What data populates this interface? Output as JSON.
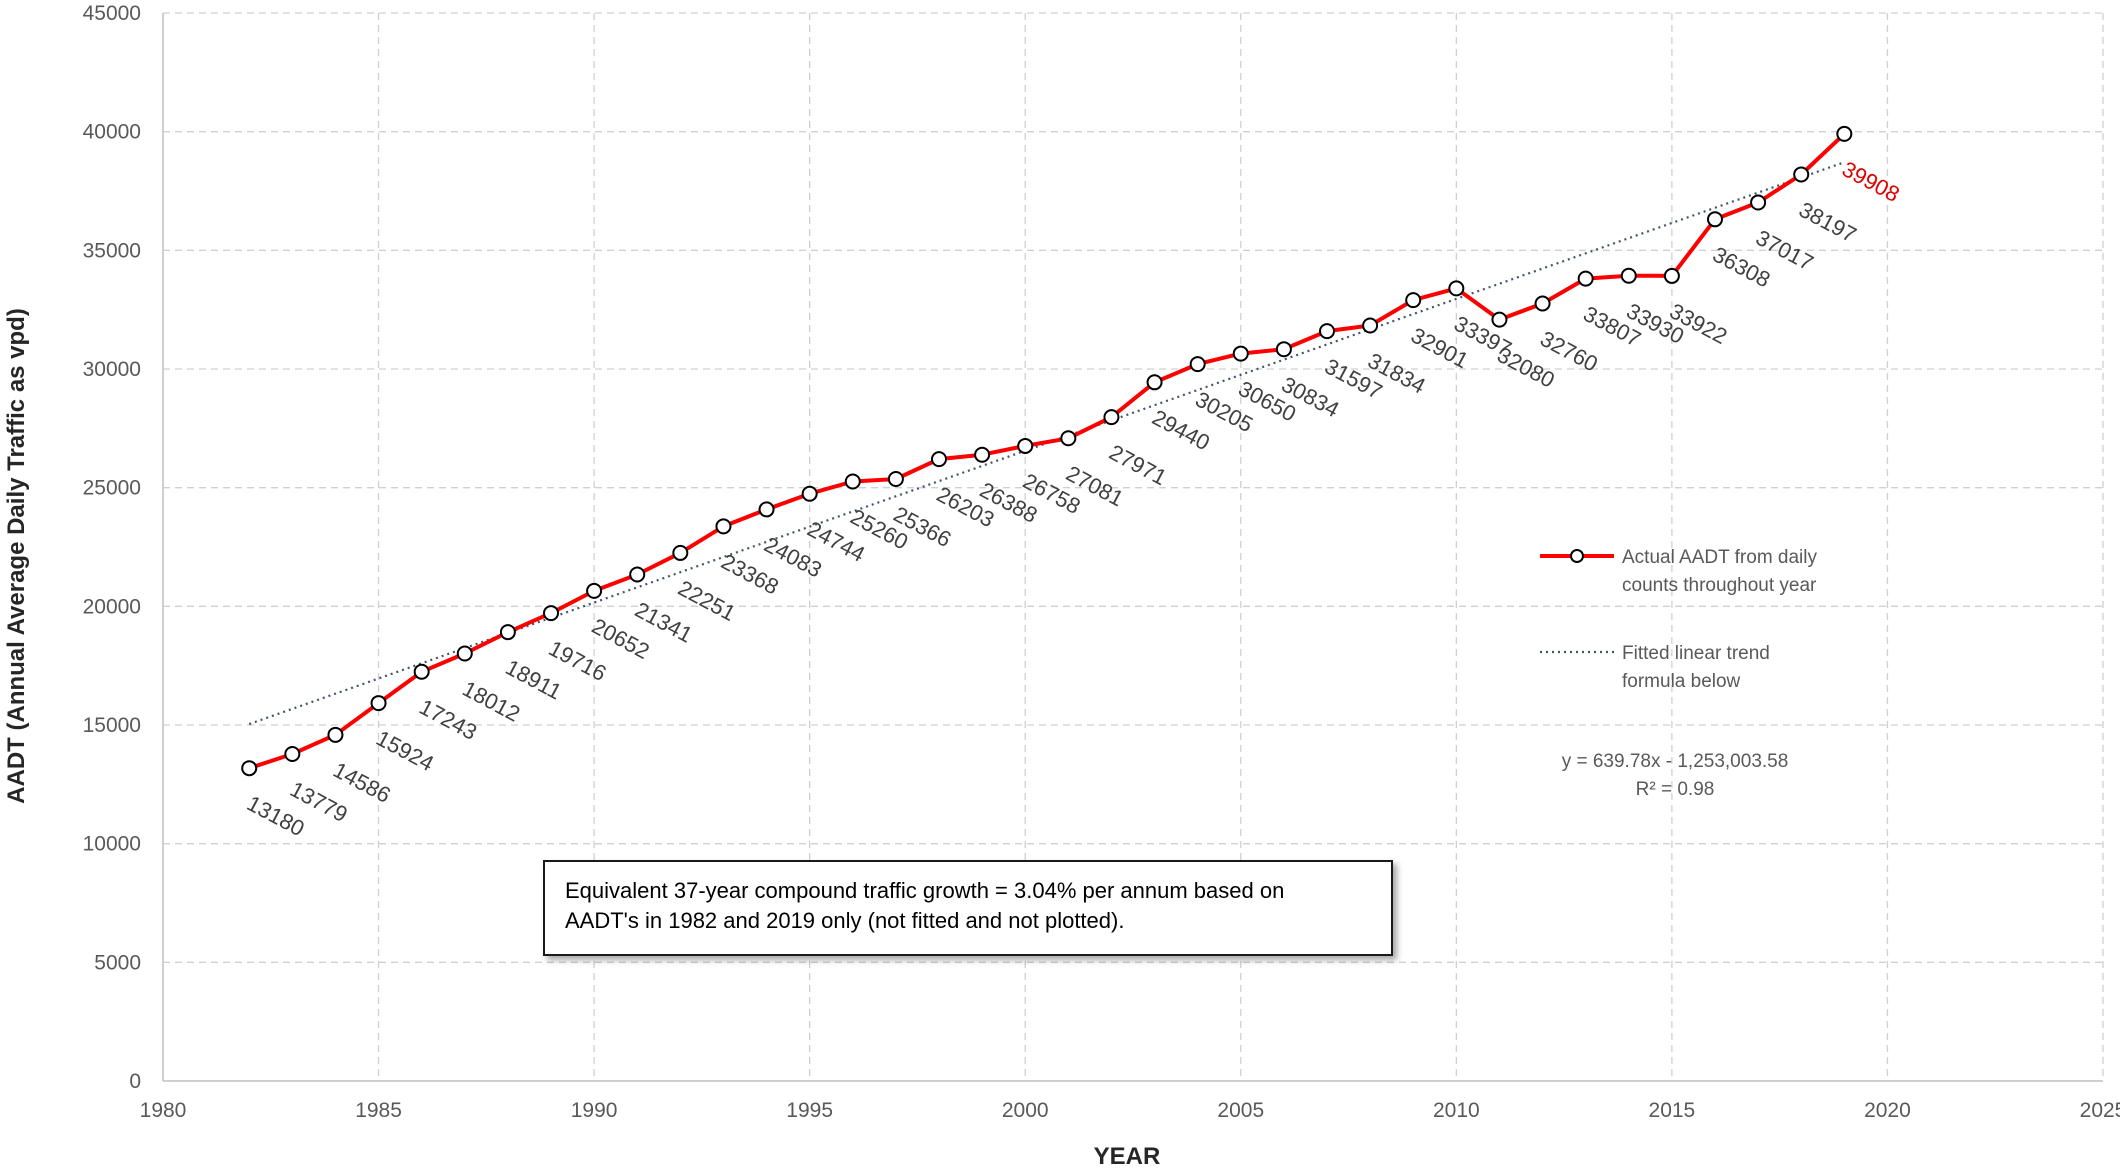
{
  "chart_data": {
    "type": "line",
    "xlabel": "YEAR",
    "ylabel": "AADT (Annual Average Daily Traffic as vpd)",
    "xlim": [
      1980,
      2025
    ],
    "ylim": [
      0,
      45000
    ],
    "x_ticks": [
      1980,
      1985,
      1990,
      1995,
      2000,
      2005,
      2010,
      2015,
      2020,
      2025
    ],
    "y_ticks": [
      0,
      5000,
      10000,
      15000,
      20000,
      25000,
      30000,
      35000,
      40000,
      45000
    ],
    "grid": "dashed, both axes",
    "legend_position": "right",
    "series": [
      {
        "name": "Actual AADT from daily counts throughout year",
        "legend_lines": [
          "Actual AADT from daily",
          "counts throughout year"
        ],
        "color": "#ff0000",
        "marker": "open-circle",
        "x": [
          1982,
          1983,
          1984,
          1985,
          1986,
          1987,
          1988,
          1989,
          1990,
          1991,
          1992,
          1993,
          1994,
          1995,
          1996,
          1997,
          1998,
          1999,
          2000,
          2001,
          2002,
          2003,
          2004,
          2005,
          2006,
          2007,
          2008,
          2009,
          2010,
          2011,
          2012,
          2013,
          2014,
          2015,
          2016,
          2017,
          2018,
          2019
        ],
        "values": [
          13180,
          13779,
          14586,
          15924,
          17243,
          18012,
          18911,
          19716,
          20652,
          21341,
          22251,
          23368,
          24083,
          24744,
          25260,
          25366,
          26203,
          26388,
          26758,
          27081,
          27971,
          29440,
          30205,
          30650,
          30834,
          31597,
          31834,
          32901,
          33397,
          32080,
          32760,
          33807,
          33930,
          33922,
          36308,
          37017,
          38197,
          39908
        ],
        "labels": [
          "13180",
          "13779",
          "14586",
          "15924",
          "17243",
          "18012",
          "18911",
          "19716",
          "20652",
          "21341",
          "22251",
          "23368",
          "24083",
          "24744",
          "25260",
          "25366",
          "26203",
          "26388",
          "26758",
          "27081",
          "27971",
          "29440",
          "30205",
          "30650",
          "30834",
          "31597",
          "31834",
          "32901",
          "33397",
          "32080",
          "32760",
          "33807",
          "33930",
          "33922",
          "36308",
          "37017",
          "38197",
          "39908"
        ],
        "last_label_color": "#e00000"
      },
      {
        "name": "Fitted linear trend formula below",
        "legend_lines": [
          "Fitted linear trend",
          "formula below"
        ],
        "color": "#44546a",
        "style": "dotted",
        "slope": 639.78,
        "intercept": -1253003.58,
        "x_range": [
          1982,
          2019
        ]
      }
    ],
    "annotations": {
      "formula": "y = 639.78x - 1,253,003.58",
      "r_squared": "R² = 0.98",
      "note_line1": "Equivalent 37-year compound traffic growth = 3.04% per annum based on",
      "note_line2": "AADT's in 1982 and 2019 only (not fitted and not plotted)."
    }
  }
}
